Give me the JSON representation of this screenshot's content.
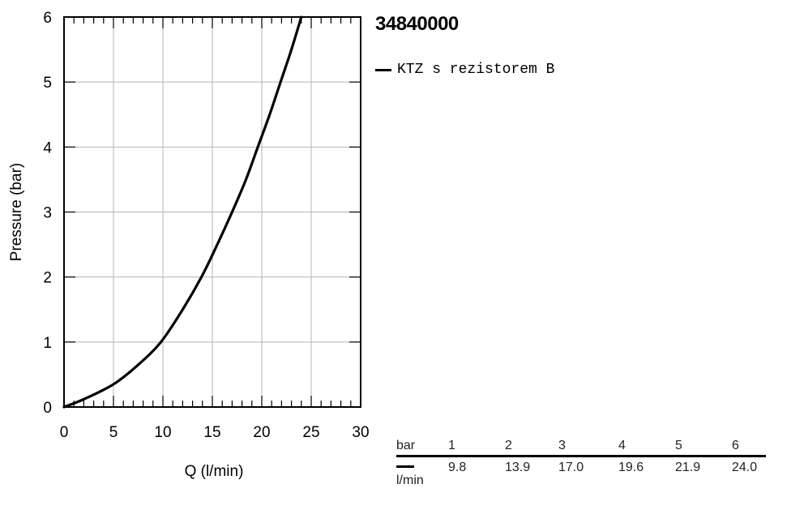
{
  "chart_data": {
    "type": "line",
    "xlabel": "Q (l/min)",
    "ylabel": "Pressure (bar)",
    "xlim": [
      0,
      30
    ],
    "ylim": [
      0,
      6
    ],
    "x_ticks": [
      "0",
      "5",
      "10",
      "15",
      "20",
      "25",
      "30"
    ],
    "y_ticks": [
      "0",
      "1",
      "2",
      "3",
      "4",
      "5",
      "6"
    ],
    "grid": true,
    "series": [
      {
        "name": "KTZ s rezistorem B",
        "color": "#000000",
        "x": [
          0,
          2,
          5,
          7.5,
          9.8,
          12,
          13.9,
          15.5,
          17.0,
          18.4,
          19.6,
          20.8,
          21.9,
          23.0,
          24.0
        ],
        "y": [
          0,
          0.12,
          0.35,
          0.65,
          1,
          1.5,
          2,
          2.5,
          3,
          3.5,
          4,
          4.5,
          5,
          5.5,
          6
        ]
      }
    ]
  },
  "product_id": "34840000",
  "legend": {
    "label": "KTZ s rezistorem B"
  },
  "table": {
    "header_unit": "bar",
    "row_unit": "l/min",
    "pressures": [
      "1",
      "2",
      "3",
      "4",
      "5",
      "6"
    ],
    "flows": [
      "9.8",
      "13.9",
      "17.0",
      "19.6",
      "21.9",
      "24.0"
    ]
  }
}
